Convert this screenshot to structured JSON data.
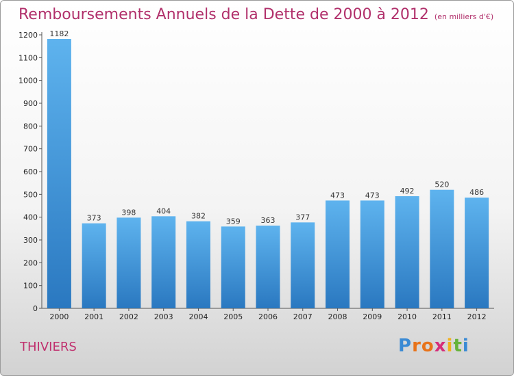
{
  "chart_data": {
    "type": "bar",
    "title": "Remboursements Annuels de la Dette de 2000 à 2012",
    "subtitle": "(en milliers d'€)",
    "categories": [
      "2000",
      "2001",
      "2002",
      "2003",
      "2004",
      "2005",
      "2006",
      "2007",
      "2008",
      "2009",
      "2010",
      "2011",
      "2012"
    ],
    "values": [
      1182,
      373,
      398,
      404,
      382,
      359,
      363,
      377,
      473,
      473,
      492,
      520,
      486
    ],
    "value_labels": [
      "1182",
      "373",
      "398",
      "404",
      "382",
      "359",
      "363",
      "377",
      "473",
      "473",
      "492",
      "520",
      "486"
    ],
    "ylim": [
      0,
      1200
    ],
    "yticks": [
      "0",
      "100",
      "200",
      "300",
      "400",
      "500",
      "600",
      "700",
      "800",
      "900",
      "1000",
      "1100",
      "1200"
    ],
    "grid": false,
    "bar_color": "#4a9de0",
    "xlabel": "",
    "ylabel": ""
  },
  "footer": {
    "city": "THIVIERS",
    "logo": [
      "P",
      "r",
      "o",
      "x",
      "i",
      "t",
      "i"
    ],
    "logo_colors": [
      "#3a8ad4",
      "#e8731a",
      "#e8731a",
      "#d62e7a",
      "#f2b01e",
      "#66b33a",
      "#3a8ad4"
    ]
  }
}
